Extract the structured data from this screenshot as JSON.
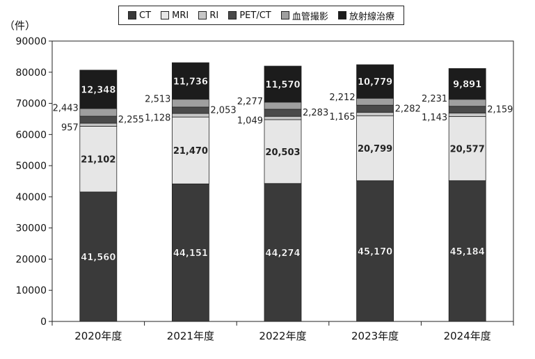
{
  "unit_label": "（件）",
  "chart_data": {
    "type": "bar",
    "stacked": true,
    "categories": [
      "2020年度",
      "2021年度",
      "2022年度",
      "2023年度",
      "2024年度"
    ],
    "ylim": [
      0,
      90000
    ],
    "yticks": [
      "0",
      "10000",
      "20000",
      "30000",
      "40000",
      "50000",
      "60000",
      "70000",
      "80000",
      "90000"
    ],
    "legend_position": "top-center",
    "grid": false,
    "series": [
      {
        "name": "CT",
        "color": "#3a3a3a",
        "label_color": "#ffffff",
        "label_style": "inside",
        "values": [
          41560,
          44151,
          44274,
          45170,
          45184
        ],
        "labels": [
          "41,560",
          "44,151",
          "44,274",
          "45,170",
          "45,184"
        ]
      },
      {
        "name": "MRI",
        "color": "#e6e6e6",
        "label_color": "#222222",
        "label_style": "inside",
        "values": [
          21102,
          21470,
          20503,
          20799,
          20577
        ],
        "labels": [
          "21,102",
          "21,470",
          "20,503",
          "20,799",
          "20,577"
        ]
      },
      {
        "name": "RI",
        "color": "#c7c7c7",
        "label_color": "#222222",
        "label_style": "left",
        "values": [
          957,
          1128,
          1049,
          1165,
          1143
        ],
        "labels": [
          "957",
          "1,128",
          "1,049",
          "1,165",
          "1,143"
        ]
      },
      {
        "name": "PET/CT",
        "color": "#4a4a4a",
        "label_color": "#222222",
        "label_style": "right",
        "values": [
          2255,
          2053,
          2283,
          2282,
          2159
        ],
        "labels": [
          "2,255",
          "2,053",
          "2,283",
          "2,282",
          "2,159"
        ]
      },
      {
        "name": "血管撮影",
        "color": "#9f9f9f",
        "label_color": "#222222",
        "label_style": "left",
        "values": [
          2443,
          2513,
          2277,
          2212,
          2231
        ],
        "labels": [
          "2,443",
          "2,513",
          "2,277",
          "2,212",
          "2,231"
        ]
      },
      {
        "name": "放射線治療",
        "color": "#1c1c1c",
        "label_color": "#ffffff",
        "label_style": "inside",
        "values": [
          12348,
          11736,
          11570,
          10779,
          9891
        ],
        "labels": [
          "12,348",
          "11,736",
          "11,570",
          "10,779",
          "9,891"
        ]
      }
    ]
  }
}
